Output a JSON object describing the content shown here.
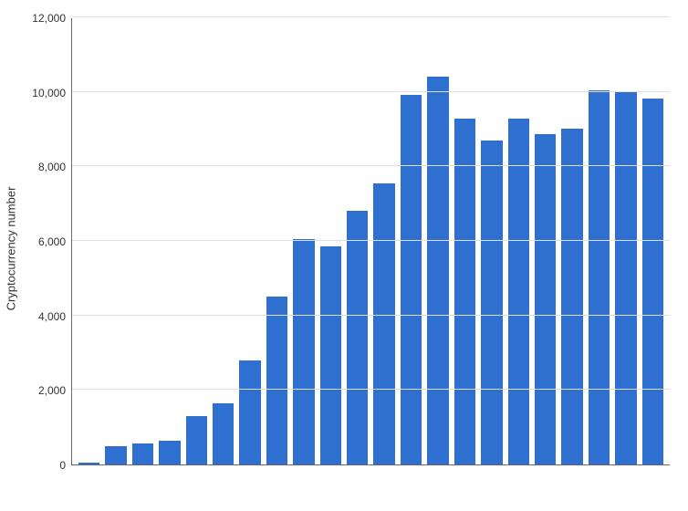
{
  "chart": {
    "type": "bar",
    "ylabel": "Cryptocurrency number",
    "label_fontsize": 13,
    "values": [
      60,
      500,
      570,
      640,
      1300,
      1650,
      2800,
      4500,
      6050,
      5850,
      6800,
      7550,
      9920,
      10420,
      9290,
      8700,
      9290,
      8870,
      9010,
      10030,
      10000,
      9820
    ],
    "bar_color": "#2f6fd0",
    "ylim": [
      0,
      12000
    ],
    "ytick_step": 2000,
    "yticks": [
      0,
      2000,
      4000,
      6000,
      8000,
      10000,
      12000
    ],
    "ytick_labels": [
      "0",
      "2,000",
      "4,000",
      "6,000",
      "8,000",
      "10,000",
      "12,000"
    ],
    "background_color": "#ffffff",
    "grid_color": "#e0e0e0",
    "axis_color": "#666666",
    "bar_width": 0.72
  }
}
